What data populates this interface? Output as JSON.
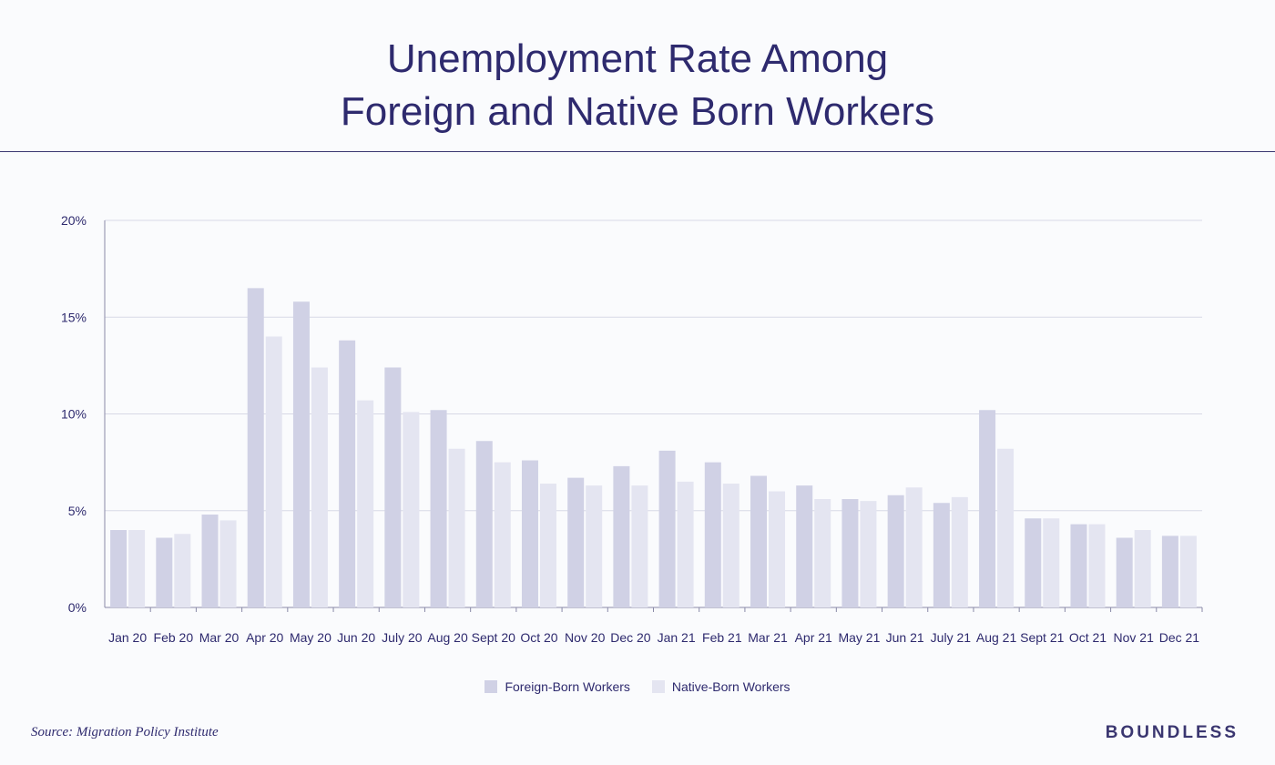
{
  "header": {
    "title_line1": "Unemployment Rate Among",
    "title_line2": "Foreign and Native Born Workers"
  },
  "footer": {
    "source": "Source: Migration Policy Institute",
    "brand": "BOUNDLESS"
  },
  "colors": {
    "foreign": "#d0d1e5",
    "native": "#e4e5f1",
    "text": "#2e2a6e",
    "grid": "#d8d9e6"
  },
  "chart_data": {
    "type": "bar",
    "categories": [
      "Jan 20",
      "Feb 20",
      "Mar 20",
      "Apr 20",
      "May 20",
      "Jun 20",
      "July 20",
      "Aug 20",
      "Sept 20",
      "Oct 20",
      "Nov 20",
      "Dec 20",
      "Jan 21",
      "Feb 21",
      "Mar 21",
      "Apr 21",
      "May 21",
      "Jun 21",
      "July 21",
      "Aug 21",
      "Sept 21",
      "Oct 21",
      "Nov 21",
      "Dec 21"
    ],
    "series": [
      {
        "name": "Foreign-Born Workers",
        "values": [
          4.0,
          3.6,
          4.8,
          16.5,
          15.8,
          13.8,
          12.4,
          10.2,
          8.6,
          7.6,
          6.7,
          7.3,
          8.1,
          7.5,
          6.8,
          6.3,
          5.6,
          5.8,
          5.4,
          10.2,
          4.6,
          4.3,
          3.6,
          3.7
        ]
      },
      {
        "name": "Native-Born Workers",
        "values": [
          4.0,
          3.8,
          4.5,
          14.0,
          12.4,
          10.7,
          10.1,
          8.2,
          7.5,
          6.4,
          6.3,
          6.3,
          6.5,
          6.4,
          6.0,
          5.6,
          5.5,
          6.2,
          5.7,
          8.2,
          4.6,
          4.3,
          4.0,
          3.7
        ]
      }
    ],
    "yticks": [
      "0%",
      "5%",
      "10%",
      "15%",
      "20%"
    ],
    "ylim": [
      0,
      20
    ],
    "xlabel": "",
    "ylabel": "",
    "grid": true,
    "legend_position": "bottom-center"
  }
}
